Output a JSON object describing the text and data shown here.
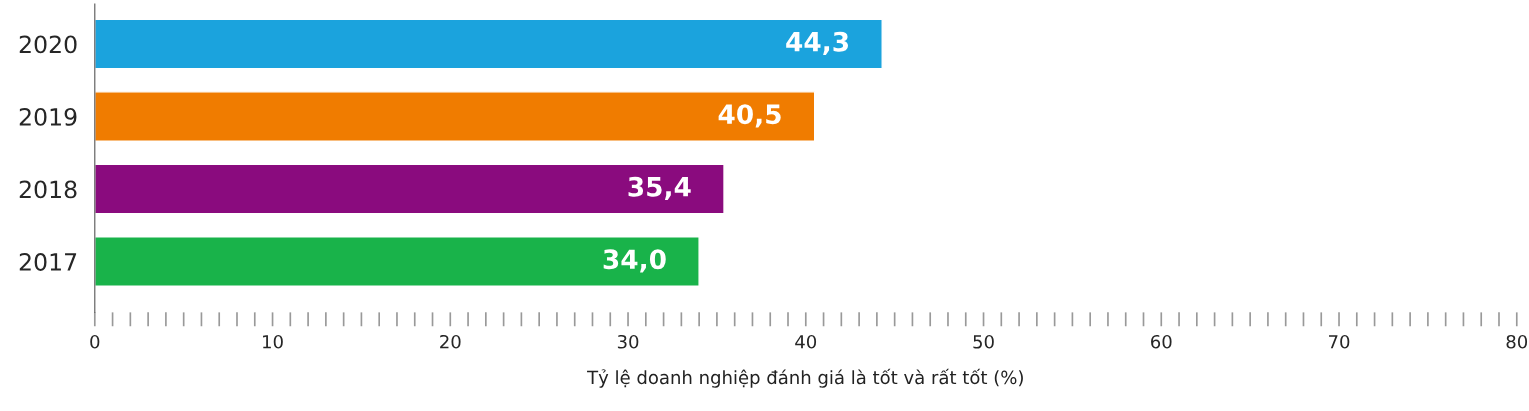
{
  "chart_data": {
    "type": "bar",
    "orientation": "horizontal",
    "categories": [
      "2020",
      "2019",
      "2018",
      "2017"
    ],
    "values": [
      44.3,
      40.5,
      35.4,
      34.0
    ],
    "colors": [
      "#1ba3dd",
      "#f07c00",
      "#8a0b7e",
      "#19b34a"
    ],
    "value_labels": [
      "44,3",
      "40,5",
      "35,4",
      "34,0"
    ],
    "xlabel": "Tỷ lệ doanh nghiệp đánh giá là tốt và rất tốt (%)",
    "xlim": [
      0,
      80
    ],
    "xticks": [
      0,
      {
        "value": 1,
        "label": null
      },
      {
        "value": 2,
        "label": null
      },
      {
        "value": 3,
        "label": null
      },
      {
        "value": 4,
        "label": null
      },
      {
        "value": 5,
        "label": null
      },
      {
        "value": 6,
        "label": null
      },
      {
        "value": 7,
        "label": null
      },
      {
        "value": 8,
        "label": null
      },
      {
        "value": 9,
        "label": null
      },
      10,
      {
        "value": 11,
        "label": null
      },
      {
        "value": 12,
        "label": null
      },
      {
        "value": 13,
        "label": null
      },
      {
        "value": 14,
        "label": null
      },
      {
        "value": 15,
        "label": null
      },
      {
        "value": 16,
        "label": null
      },
      {
        "value": 17,
        "label": null
      },
      {
        "value": 18,
        "label": null
      },
      {
        "value": 19,
        "label": null
      },
      20,
      {
        "value": 21,
        "label": null
      },
      {
        "value": 22,
        "label": null
      },
      {
        "value": 23,
        "label": null
      },
      {
        "value": 24,
        "label": null
      },
      {
        "value": 25,
        "label": null
      },
      {
        "value": 26,
        "label": null
      },
      {
        "value": 27,
        "label": null
      },
      {
        "value": 28,
        "label": null
      },
      {
        "value": 29,
        "label": null
      },
      30,
      {
        "value": 31,
        "label": null
      },
      {
        "value": 32,
        "label": null
      },
      {
        "value": 33,
        "label": null
      },
      {
        "value": 34,
        "label": null
      },
      {
        "value": 35,
        "label": null
      },
      {
        "value": 36,
        "label": null
      },
      {
        "value": 37,
        "label": null
      },
      {
        "value": 38,
        "label": null
      },
      {
        "value": 39,
        "label": null
      },
      40,
      {
        "value": 41,
        "label": null
      },
      {
        "value": 42,
        "label": null
      },
      {
        "value": 43,
        "label": null
      },
      {
        "value": 44,
        "label": null
      },
      {
        "value": 45,
        "label": null
      },
      {
        "value": 46,
        "label": null
      },
      {
        "value": 47,
        "label": null
      },
      {
        "value": 48,
        "label": null
      },
      {
        "value": 49,
        "label": null
      },
      50,
      {
        "value": 51,
        "label": null
      },
      {
        "value": 52,
        "label": null
      },
      {
        "value": 53,
        "label": null
      },
      {
        "value": 54,
        "label": null
      },
      {
        "value": 55,
        "label": null
      },
      {
        "value": 56,
        "label": null
      },
      {
        "value": 57,
        "label": null
      },
      {
        "value": 58,
        "label": null
      },
      {
        "value": 59,
        "label": null
      },
      60,
      {
        "value": 61,
        "label": null
      },
      {
        "value": 62,
        "label": null
      },
      {
        "value": 63,
        "label": null
      },
      {
        "value": 64,
        "label": null
      },
      {
        "value": 65,
        "label": null
      },
      {
        "value": 66,
        "label": null
      },
      {
        "value": 67,
        "label": null
      },
      {
        "value": 68,
        "label": null
      },
      {
        "value": 69,
        "label": null
      },
      70,
      {
        "value": 71,
        "label": null
      },
      {
        "value": 72,
        "label": null
      },
      {
        "value": 73,
        "label": null
      },
      {
        "value": 74,
        "label": null
      },
      {
        "value": 75,
        "label": null
      },
      {
        "value": 76,
        "label": null
      },
      {
        "value": 77,
        "label": null
      },
      {
        "value": 78,
        "label": null
      },
      {
        "value": 79,
        "label": null
      },
      80
    ],
    "grid": false,
    "legend": false
  }
}
